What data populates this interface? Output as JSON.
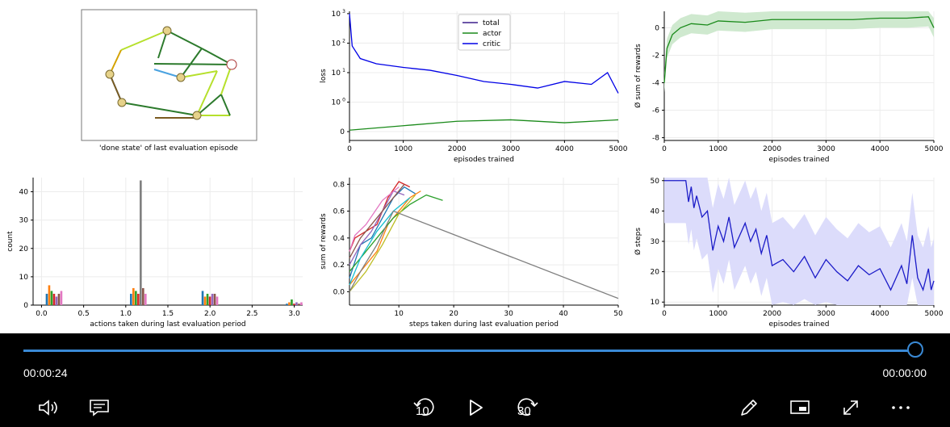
{
  "player": {
    "current_time": "00:00:24",
    "remaining_time": "00:00:00",
    "progress": 1.0,
    "skip_back_label": "10",
    "skip_forward_label": "30",
    "accent_color": "#3a8ad6"
  },
  "controls": {
    "left": [
      "volume-icon",
      "captions-icon"
    ],
    "center": [
      "skip-back-10-icon",
      "play-icon",
      "skip-forward-30-icon"
    ],
    "right": [
      "pen-icon",
      "miniplayer-icon",
      "fullscreen-icon",
      "more-icon"
    ]
  },
  "video": {
    "graph_panel": {
      "caption": "'done state' of last evaluation episode"
    },
    "chart_data": [
      {
        "id": "loss",
        "type": "line",
        "xlabel": "episodes trained",
        "ylabel": "loss",
        "yscale": "symlog",
        "xlim": [
          0,
          5000
        ],
        "x_ticks": [
          "0",
          "1000",
          "2000",
          "3000",
          "4000",
          "5000"
        ],
        "y_ticks": [
          "0",
          "10^0",
          "10^1",
          "10^2",
          "10^3"
        ],
        "legend_position": "top-center",
        "series": [
          {
            "name": "total",
            "color": "#3b1e8c",
            "values": []
          },
          {
            "name": "actor",
            "color": "#1a8a1a",
            "x": [
              0,
              1000,
              2000,
              3000,
              4000,
              5000
            ],
            "values": [
              0.05,
              0.2,
              0.35,
              0.4,
              0.3,
              0.4
            ]
          },
          {
            "name": "critic",
            "color": "#0000e6",
            "x": [
              0,
              50,
              200,
              500,
              1000,
              1500,
              2000,
              2500,
              3000,
              3500,
              4000,
              4500,
              4800,
              5000
            ],
            "values": [
              1000,
              80,
              30,
              20,
              15,
              12,
              8,
              5,
              4,
              3,
              5,
              4,
              10,
              2
            ]
          }
        ],
        "grid": true
      },
      {
        "id": "rewards",
        "type": "line",
        "xlabel": "episodes trained",
        "ylabel": "Ø sum of rewards",
        "xlim": [
          0,
          5000
        ],
        "ylim": [
          -8.2,
          1.2
        ],
        "x_ticks": [
          "0",
          "1000",
          "2000",
          "3000",
          "4000",
          "5000"
        ],
        "y_ticks": [
          "-8",
          "-6",
          "-4",
          "-2",
          "0"
        ],
        "series": [
          {
            "color": "#1a8a1a",
            "x": [
              0,
              50,
              150,
              300,
              500,
              800,
              1000,
              1500,
              2000,
              2500,
              3000,
              3500,
              4000,
              4500,
              4900,
              5000
            ],
            "values": [
              -4,
              -1.5,
              -0.5,
              0,
              0.3,
              0.2,
              0.5,
              0.4,
              0.6,
              0.6,
              0.6,
              0.6,
              0.7,
              0.7,
              0.8,
              0
            ]
          }
        ],
        "band_color": "#cfe9cf",
        "grid": true
      },
      {
        "id": "actions",
        "type": "bar",
        "xlabel": "actions taken during last evaluation period",
        "ylabel": "count",
        "xlim": [
          -0.1,
          3.1
        ],
        "ylim": [
          0,
          45
        ],
        "x_ticks": [
          "0.0",
          "0.5",
          "1.0",
          "1.5",
          "2.0",
          "2.5",
          "3.0"
        ],
        "y_ticks": [
          "0",
          "10",
          "20",
          "30",
          "40"
        ],
        "groups": [
          {
            "x": 0.05,
            "values": [
              4,
              7,
              5,
              4,
              3,
              4,
              5
            ]
          },
          {
            "x": 1.05,
            "values": [
              4,
              6,
              5,
              4,
              44,
              6,
              4
            ]
          },
          {
            "x": 1.9,
            "values": [
              5,
              3,
              4,
              3,
              4,
              4,
              3
            ]
          },
          {
            "x": 2.9,
            "values": [
              0.5,
              1,
              2,
              0.5,
              1,
              0.5,
              1
            ]
          }
        ],
        "grid": true
      },
      {
        "id": "steps_rewards",
        "type": "line",
        "xlabel": "steps taken during last evaluation period",
        "ylabel": "sum of rewards",
        "xlim": [
          1,
          50
        ],
        "ylim": [
          -0.1,
          0.85
        ],
        "x_ticks": [
          "10",
          "20",
          "30",
          "40",
          "50"
        ],
        "y_ticks": [
          "0.0",
          "0.2",
          "0.4",
          "0.6",
          "0.8"
        ],
        "series": [
          {
            "color": "#1f77b4",
            "x": [
              1,
              3,
              5,
              7,
              9,
              11,
              13
            ],
            "values": [
              0.1,
              0.35,
              0.4,
              0.55,
              0.7,
              0.78,
              0.73
            ]
          },
          {
            "color": "#ff7f0e",
            "x": [
              1,
              4,
              6,
              8,
              10,
              12,
              14
            ],
            "values": [
              0.05,
              0.2,
              0.3,
              0.5,
              0.6,
              0.7,
              0.75
            ]
          },
          {
            "color": "#2ca02c",
            "x": [
              1,
              3,
              6,
              9,
              12,
              15,
              18
            ],
            "values": [
              0.15,
              0.25,
              0.4,
              0.55,
              0.65,
              0.72,
              0.68
            ]
          },
          {
            "color": "#d62728",
            "x": [
              1,
              2,
              4,
              6,
              8,
              10,
              12
            ],
            "values": [
              0.3,
              0.4,
              0.45,
              0.5,
              0.7,
              0.82,
              0.78
            ]
          },
          {
            "color": "#9467bd",
            "x": [
              1,
              3,
              5,
              7,
              9,
              11
            ],
            "values": [
              0.2,
              0.35,
              0.45,
              0.6,
              0.75,
              0.72
            ]
          },
          {
            "color": "#8c564b",
            "x": [
              1,
              3,
              5,
              8,
              11
            ],
            "values": [
              0.25,
              0.4,
              0.5,
              0.65,
              0.8
            ]
          },
          {
            "color": "#e377c2",
            "x": [
              1,
              2,
              4,
              7,
              10
            ],
            "values": [
              0.3,
              0.42,
              0.5,
              0.68,
              0.78
            ]
          },
          {
            "color": "#bcbd22",
            "x": [
              1,
              4,
              7,
              10,
              13
            ],
            "values": [
              0.0,
              0.15,
              0.35,
              0.58,
              0.72
            ]
          },
          {
            "color": "#17becf",
            "x": [
              1,
              3,
              6,
              9,
              12
            ],
            "values": [
              0.05,
              0.25,
              0.45,
              0.6,
              0.7
            ]
          },
          {
            "color": "#7f7f7f",
            "x": [
              1,
              3,
              6,
              9,
              50
            ],
            "values": [
              0.0,
              0.15,
              0.35,
              0.6,
              -0.05
            ]
          }
        ],
        "grid": true
      },
      {
        "id": "steps",
        "type": "line",
        "xlabel": "episodes trained",
        "ylabel": "Ø steps",
        "xlim": [
          0,
          5000
        ],
        "ylim": [
          9,
          51
        ],
        "x_ticks": [
          "0",
          "1000",
          "2000",
          "3000",
          "4000",
          "5000"
        ],
        "y_ticks": [
          "10",
          "20",
          "30",
          "40",
          "50"
        ],
        "series": [
          {
            "color": "#1c1cc8",
            "x": [
              0,
              400,
              450,
              500,
              550,
              600,
              700,
              800,
              900,
              1000,
              1100,
              1200,
              1300,
              1400,
              1500,
              1600,
              1700,
              1800,
              1900,
              2000,
              2200,
              2400,
              2600,
              2800,
              3000,
              3200,
              3400,
              3600,
              3800,
              4000,
              4200,
              4400,
              4500,
              4600,
              4700,
              4800,
              4900,
              4950,
              5000
            ],
            "values": [
              50,
              50,
              43,
              48,
              41,
              45,
              38,
              40,
              27,
              35,
              30,
              38,
              28,
              32,
              36,
              30,
              34,
              26,
              32,
              22,
              24,
              20,
              25,
              18,
              24,
              20,
              17,
              22,
              19,
              21,
              14,
              22,
              16,
              32,
              18,
              14,
              21,
              14,
              17
            ]
          }
        ],
        "band_color": "#dcdcfb",
        "grid": true
      }
    ]
  }
}
